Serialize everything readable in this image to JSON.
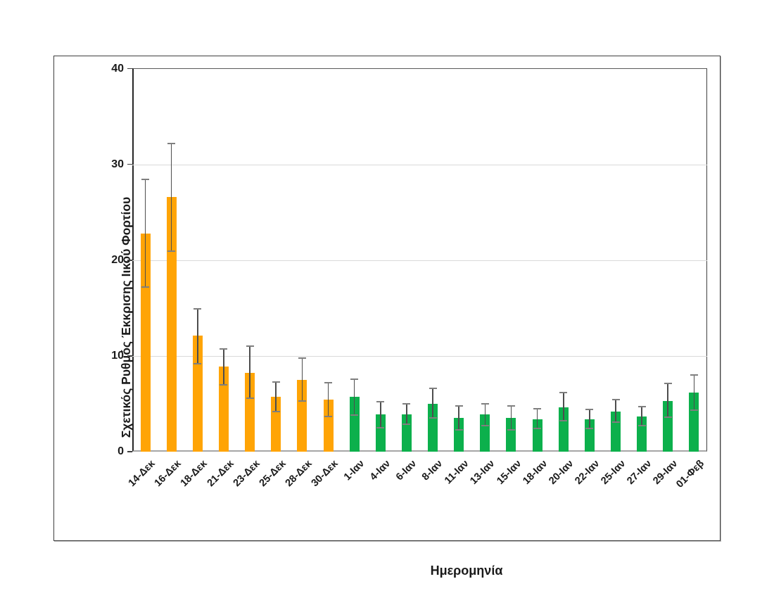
{
  "chart_data": {
    "type": "bar",
    "title": "",
    "xlabel": "Ημερομηνία",
    "ylabel": "Σχετικός Ρυθμός Έκκρισης Ιικού Φορτίου",
    "ylim": [
      0,
      40
    ],
    "yticks": [
      0,
      10,
      20,
      30,
      40
    ],
    "grid": true,
    "legend_visible": false,
    "error_bars": true,
    "categories": [
      "14-Δεκ",
      "16-Δεκ",
      "18-Δεκ",
      "21-Δεκ",
      "23-Δεκ",
      "25-Δεκ",
      "28-Δεκ",
      "30-Δεκ",
      "1-Ιαν",
      "4-Ιαν",
      "6-Ιαν",
      "8-Ιαν",
      "11-Ιαν",
      "13-Ιαν",
      "15-Ιαν",
      "18-Ιαν",
      "20-Ιαν",
      "22-Ιαν",
      "25-Ιαν",
      "27-Ιαν",
      "29-Ιαν",
      "01-Φεβ"
    ],
    "values": [
      22.8,
      26.6,
      12.1,
      8.9,
      8.2,
      5.7,
      7.5,
      5.4,
      5.7,
      3.9,
      3.9,
      5.0,
      3.5,
      3.9,
      3.5,
      3.4,
      4.6,
      3.4,
      4.2,
      3.7,
      5.3,
      6.2
    ],
    "error_high": [
      28.4,
      32.2,
      14.9,
      10.7,
      11.0,
      7.3,
      9.8,
      7.2,
      7.6,
      5.2,
      5.0,
      6.6,
      4.8,
      5.0,
      4.8,
      4.5,
      6.2,
      4.4,
      5.4,
      4.7,
      7.1,
      8.0
    ],
    "error_low": [
      17.2,
      20.9,
      9.2,
      7.0,
      5.6,
      4.2,
      5.3,
      3.7,
      3.8,
      2.5,
      2.9,
      3.5,
      2.3,
      2.7,
      2.3,
      2.4,
      3.2,
      2.4,
      3.1,
      2.7,
      3.6,
      4.3
    ],
    "point_groups": [
      "dec",
      "dec",
      "dec",
      "dec",
      "dec",
      "dec",
      "dec",
      "dec",
      "jan",
      "jan",
      "jan",
      "jan",
      "jan",
      "jan",
      "jan",
      "jan",
      "jan",
      "jan",
      "jan",
      "jan",
      "jan",
      "jan"
    ],
    "colors": {
      "december": "#FFA405",
      "january": "#0CB04C",
      "error_line": "#4d4d4d",
      "error_cap": "#7f7f7f",
      "gridline": "#d9d9d9",
      "text": "#1a1a1a"
    }
  }
}
